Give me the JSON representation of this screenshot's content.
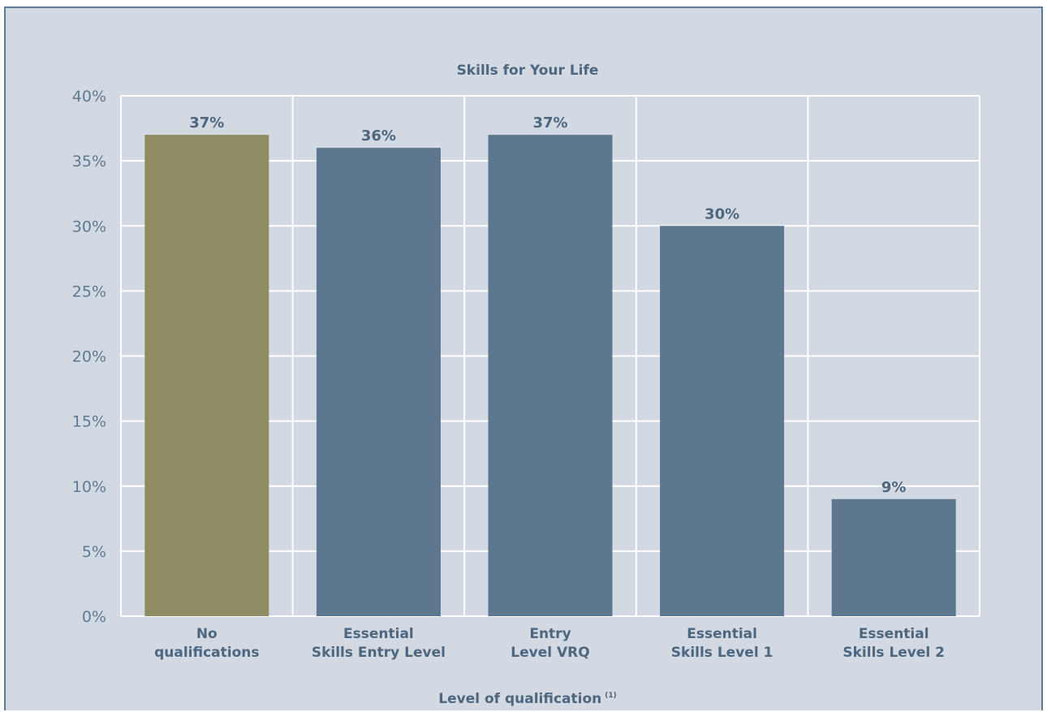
{
  "chart_data": {
    "type": "bar",
    "title": "Skills for Your Life",
    "xlabel": "Level of qualification",
    "xlabel_superscript": "(1)",
    "ylabel": "",
    "categories": [
      [
        "No",
        "qualifications"
      ],
      [
        "Essential",
        "Skills Entry Level"
      ],
      [
        "Entry",
        "Level VRQ"
      ],
      [
        "Essential",
        "Skills Level 1"
      ],
      [
        "Essential",
        "Skills Level 2"
      ]
    ],
    "values": [
      37,
      36,
      37,
      30,
      9
    ],
    "data_labels": [
      "37%",
      "36%",
      "37%",
      "30%",
      "9%"
    ],
    "bar_colors": [
      "#8f8c63",
      "#5c778e",
      "#5c778e",
      "#5c778e",
      "#5c778e"
    ],
    "ylim": [
      0,
      40
    ],
    "yticks": [
      0,
      5,
      10,
      15,
      20,
      25,
      30,
      35,
      40
    ],
    "ytick_labels": [
      "0%",
      "5%",
      "10%",
      "15%",
      "20%",
      "25%",
      "30%",
      "35%",
      "40%"
    ],
    "grid": true,
    "legend": "none"
  },
  "colors": {
    "background": "#d2d9e2",
    "grid": "#ffffff",
    "text": "#4d6780",
    "frame": "#5e7a92"
  }
}
